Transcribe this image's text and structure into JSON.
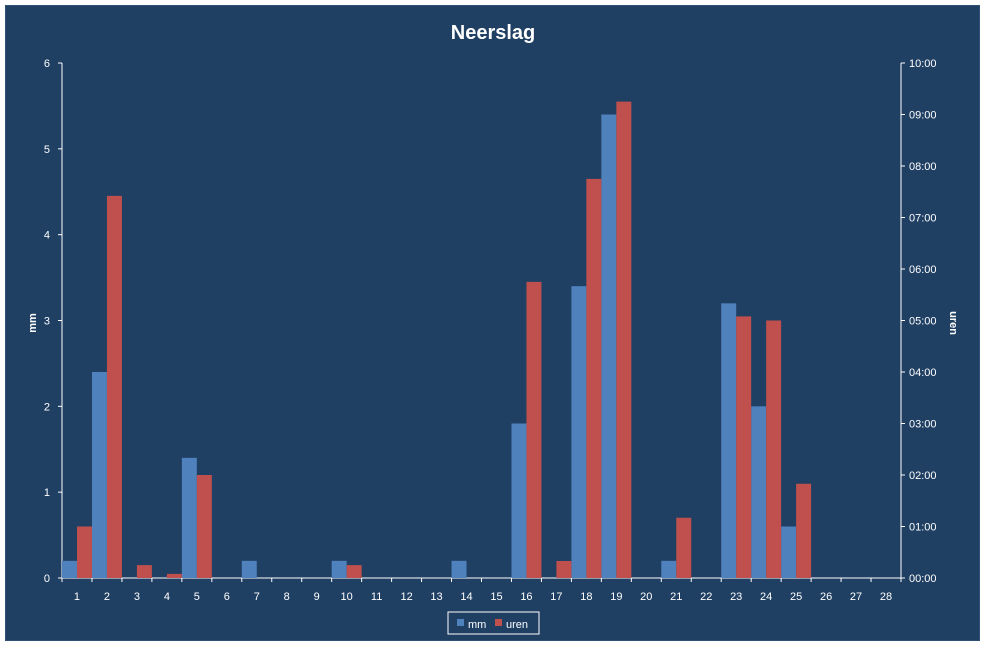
{
  "chart_data": {
    "type": "bar",
    "title": "Neerslag",
    "ylabel": "mm",
    "y2label": "uren",
    "ylim": [
      0,
      6
    ],
    "y2lim": [
      0,
      10
    ],
    "yticks": [
      "0",
      "1",
      "2",
      "3",
      "4",
      "5",
      "6"
    ],
    "y2ticks": [
      "00:00",
      "01:00",
      "02:00",
      "03:00",
      "04:00",
      "05:00",
      "06:00",
      "07:00",
      "08:00",
      "09:00",
      "10:00"
    ],
    "categories": [
      "1",
      "2",
      "3",
      "4",
      "5",
      "6",
      "7",
      "8",
      "9",
      "10",
      "11",
      "12",
      "13",
      "14",
      "15",
      "16",
      "17",
      "18",
      "19",
      "20",
      "21",
      "22",
      "23",
      "24",
      "25",
      "26",
      "27",
      "28"
    ],
    "series": [
      {
        "name": "mm",
        "axis": "left",
        "color": "#4f81bd",
        "values": [
          0.2,
          2.4,
          0,
          0,
          1.4,
          0,
          0.2,
          0,
          0,
          0.2,
          0,
          0,
          0,
          0.2,
          0,
          1.8,
          0,
          3.4,
          5.4,
          0,
          0.2,
          0,
          3.2,
          2.0,
          0.6,
          0,
          0,
          0
        ]
      },
      {
        "name": "uren",
        "axis": "right",
        "unit": "hours",
        "color": "#c0504d",
        "values": [
          1.0,
          7.42,
          0.25,
          0.08,
          2.0,
          0,
          0,
          0,
          0,
          0.25,
          0,
          0,
          0,
          0,
          0,
          5.75,
          0.33,
          7.75,
          9.25,
          0,
          1.17,
          0,
          5.08,
          5.0,
          1.83,
          0,
          0,
          0
        ]
      }
    ],
    "grid": false,
    "legend": "bottom-center",
    "background_color": "#1f3f63",
    "axis_color": "#ffffff"
  }
}
